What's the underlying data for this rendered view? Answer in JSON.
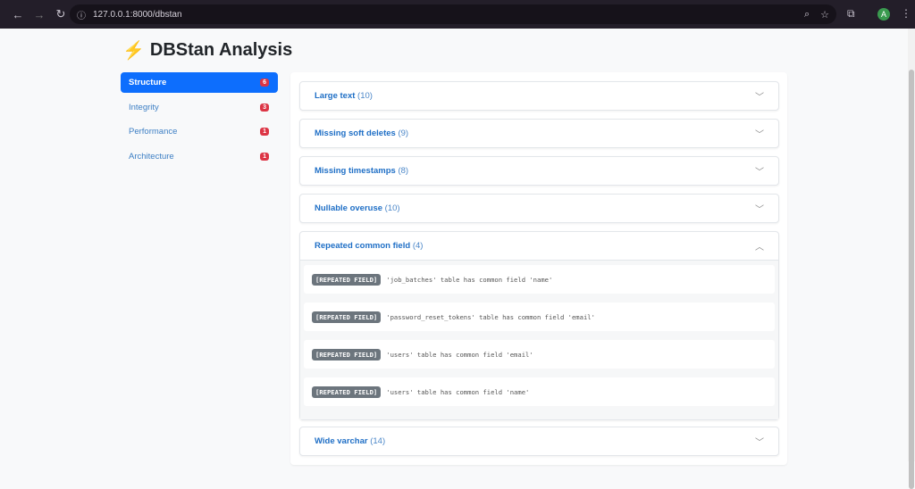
{
  "browser": {
    "url": "127.0.0.1:8000/dbstan",
    "avatar": "A"
  },
  "title": "DBStan Analysis",
  "sidebar": {
    "items": [
      {
        "label": "Structure",
        "count": "6",
        "active": true
      },
      {
        "label": "Integrity",
        "count": "3"
      },
      {
        "label": "Performance",
        "count": "1"
      },
      {
        "label": "Architecture",
        "count": "1"
      }
    ]
  },
  "sections": [
    {
      "title": "Large text",
      "count": "(10)"
    },
    {
      "title": "Missing soft deletes",
      "count": "(9)"
    },
    {
      "title": "Missing timestamps",
      "count": "(8)"
    },
    {
      "title": "Nullable overuse",
      "count": "(10)"
    },
    {
      "title": "Repeated common field",
      "count": "(4)",
      "expanded": true,
      "items": [
        {
          "tag": "[REPEATED FIELD]",
          "text": "'job_batches' table has common field 'name'"
        },
        {
          "tag": "[REPEATED FIELD]",
          "text": "'password_reset_tokens' table has common field 'email'"
        },
        {
          "tag": "[REPEATED FIELD]",
          "text": "'users' table has common field 'email'"
        },
        {
          "tag": "[REPEATED FIELD]",
          "text": "'users' table has common field 'name'"
        }
      ]
    },
    {
      "title": "Wide varchar",
      "count": "(14)"
    }
  ]
}
